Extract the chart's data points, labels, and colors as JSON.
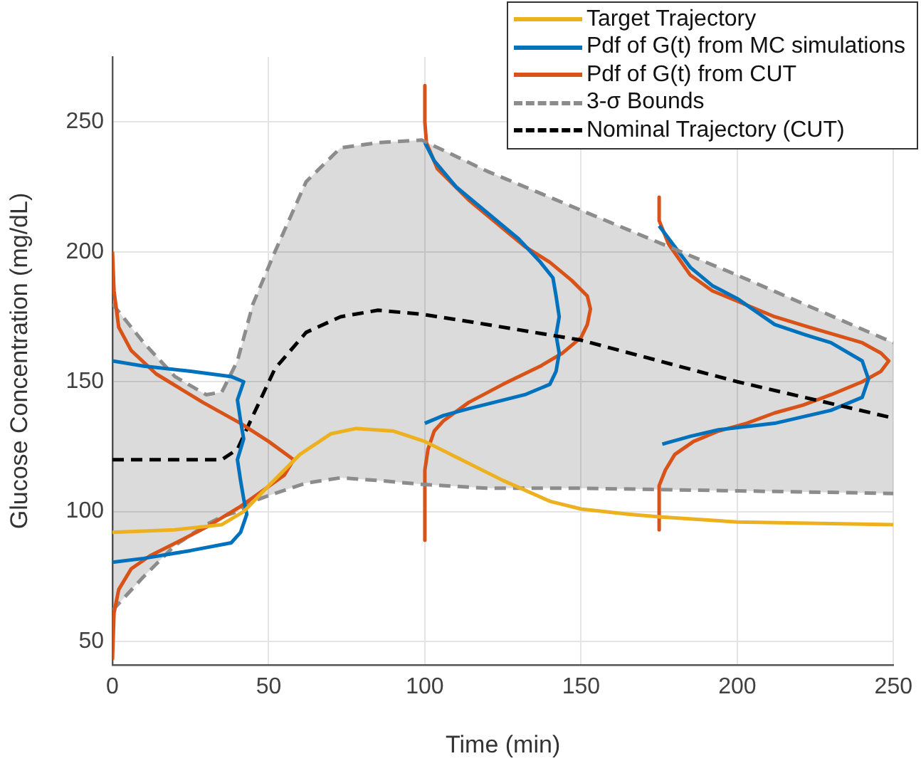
{
  "chart_data": {
    "type": "line",
    "xlabel": "Time (min)",
    "ylabel": "Glucose Concentration (mg/dL)",
    "xlim": [
      0,
      250
    ],
    "ylim": [
      41,
      275
    ],
    "xticks": [
      0,
      50,
      100,
      150,
      200,
      250
    ],
    "yticks": [
      50,
      100,
      150,
      200,
      250
    ],
    "grid": true,
    "legend": "top right",
    "series": [
      {
        "name": "Target Trajectory",
        "color": "#edb120",
        "x": [
          0,
          20,
          35,
          42,
          50,
          60,
          70,
          78,
          90,
          100,
          110,
          125,
          140,
          150,
          165,
          175,
          200,
          250
        ],
        "values": [
          92,
          93,
          95,
          100,
          110,
          122,
          130,
          132,
          131,
          127,
          121,
          112,
          104,
          101,
          99,
          98,
          96,
          95
        ]
      },
      {
        "name": "Pdf of G(t) from MC simulations",
        "color": "#0072bd",
        "x": [
          0,
          10,
          25,
          38,
          42,
          40,
          41,
          42,
          40,
          41,
          42,
          43,
          41,
          38,
          25,
          10,
          0
        ],
        "values": [
          158,
          156,
          154,
          152,
          150,
          143,
          135,
          128,
          120,
          112,
          105,
          99,
          92,
          88,
          85,
          82,
          80.5
        ]
      },
      {
        "name": "Pdf of G(t) from CUT",
        "color": "#d95319",
        "x": [
          0,
          0.5,
          2,
          6,
          14,
          29,
          41,
          50,
          58,
          55,
          48,
          41,
          30,
          22,
          12,
          6,
          2,
          0.5,
          0
        ],
        "values": [
          200,
          185,
          171,
          162,
          153,
          142,
          134,
          127,
          120,
          114,
          108,
          102,
          94,
          89,
          83,
          78,
          70,
          61,
          43
        ]
      },
      {
        "name": "3-σ Bounds",
        "color": "#8c8c8c",
        "line_style": "dashed",
        "x": [
          0,
          10,
          20,
          30,
          35,
          40,
          45,
          52,
          62,
          73,
          85,
          99,
          120,
          150,
          200,
          250
        ],
        "values": [
          180,
          165,
          152,
          145,
          146,
          158,
          180,
          200,
          227,
          240,
          242,
          243,
          231,
          216,
          191,
          165
        ]
      },
      {
        "name": "Nominal Trajectory (CUT)",
        "color": "#000000",
        "line_style": "dashed",
        "x": [
          0,
          10,
          20,
          30,
          35,
          40,
          45,
          52,
          62,
          73,
          85,
          99,
          120,
          150,
          200,
          250
        ],
        "values": [
          120,
          120,
          120,
          120,
          120,
          124,
          137,
          155,
          169,
          175,
          177.5,
          176,
          172,
          166,
          150,
          136
        ],
        "upper": [
          180,
          165,
          152,
          145,
          146,
          158,
          180,
          200,
          227,
          240,
          242,
          243,
          231,
          216,
          191,
          165
        ],
        "lower": [
          62,
          75,
          87,
          95,
          98,
          100,
          104,
          107,
          111,
          113,
          112,
          110.5,
          109,
          109,
          108,
          107
        ]
      },
      {
        "color": "#8c8c8c",
        "line_style": "dashed",
        "x": [
          0,
          10,
          20,
          30,
          35,
          40,
          45,
          52,
          62,
          73,
          85,
          99,
          120,
          150,
          200,
          250
        ],
        "values": [
          62,
          75,
          87,
          95,
          98,
          100,
          104,
          107,
          111,
          113,
          112,
          110.5,
          109,
          109,
          108,
          107
        ]
      },
      {
        "color": "#0072bd",
        "x": [
          100,
          103,
          110,
          120,
          130,
          137,
          141,
          142,
          143,
          142,
          143,
          142,
          140,
          132,
          122,
          114,
          106,
          100
        ],
        "values": [
          242,
          235,
          225,
          215,
          205,
          196,
          190,
          183,
          175,
          168,
          161,
          154,
          149,
          145,
          142,
          139.6,
          137,
          134
        ]
      },
      {
        "color": "#d95319",
        "x": [
          100,
          100,
          100.5,
          104,
          114,
          124,
          132,
          140,
          147,
          152,
          153,
          152,
          150,
          144,
          137,
          125,
          114,
          106,
          103,
          101,
          100,
          100
        ],
        "values": [
          264,
          250,
          242,
          232,
          220,
          210,
          202,
          196,
          189,
          183,
          178,
          172,
          167,
          161,
          156,
          149,
          142,
          135,
          131,
          124,
          116,
          89
        ]
      },
      {
        "color": "#0072bd",
        "x": [
          175,
          180,
          185,
          192,
          200,
          212,
          222,
          230,
          240,
          242,
          240,
          230,
          212,
          194,
          185,
          176
        ],
        "values": [
          210,
          202,
          194,
          187,
          182,
          172,
          168,
          165,
          158,
          151,
          144,
          139,
          134,
          131.5,
          129,
          126
        ]
      },
      {
        "color": "#d95319",
        "x": [
          175,
          175,
          178,
          185,
          192,
          200,
          212,
          223,
          240,
          246,
          248.5,
          246,
          240,
          230,
          221,
          212,
          203,
          194,
          186,
          180,
          177,
          175,
          175
        ],
        "values": [
          221,
          212,
          203,
          191,
          185,
          181,
          175,
          171,
          165,
          161,
          158,
          154,
          150,
          145,
          141,
          138,
          134,
          131,
          127,
          122,
          116,
          110,
          93
        ]
      }
    ]
  }
}
